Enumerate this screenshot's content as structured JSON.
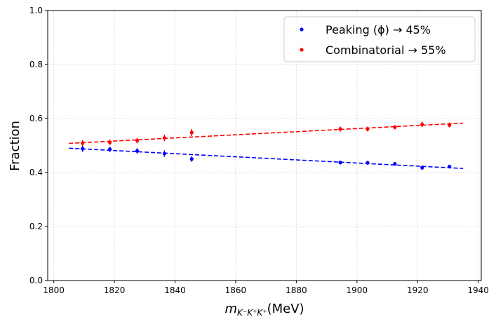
{
  "chart_data": {
    "type": "scatter",
    "title": "",
    "xlabel": "m_{K⁻K⁺K⁺} (MeV)",
    "xlabel_parts": {
      "main": "m",
      "sub": "K⁻K⁺K⁺",
      "unit": "(MeV)"
    },
    "ylabel": "Fraction",
    "xlim": [
      1798,
      1941
    ],
    "ylim": [
      0.0,
      1.0
    ],
    "xticks": [
      1800,
      1820,
      1840,
      1860,
      1880,
      1900,
      1920,
      1940
    ],
    "yticks": [
      0.0,
      0.2,
      0.4,
      0.6,
      0.8,
      1.0
    ],
    "grid": true,
    "legend_position": "top-right",
    "series": [
      {
        "name": "Peaking",
        "legend_label": "Peaking (ϕ) → 45%",
        "color": "#0000ff",
        "x": [
          1809.5,
          1818.5,
          1827.5,
          1836.5,
          1845.5,
          1894.5,
          1903.5,
          1912.5,
          1921.5,
          1930.5
        ],
        "y": [
          0.488,
          0.486,
          0.48,
          0.47,
          0.45,
          0.437,
          0.436,
          0.432,
          0.418,
          0.422
        ],
        "yerr": [
          0.011,
          0.01,
          0.01,
          0.012,
          0.01,
          0.007,
          0.007,
          0.007,
          0.008,
          0.007
        ],
        "fit": {
          "x": [
            1805,
            1935
          ],
          "y": [
            0.49,
            0.415
          ]
        }
      },
      {
        "name": "Combinatorial",
        "legend_label": "Combinatorial  → 55%",
        "color": "#ff0000",
        "x": [
          1809.5,
          1818.5,
          1827.5,
          1836.5,
          1845.5,
          1894.5,
          1903.5,
          1912.5,
          1921.5,
          1930.5
        ],
        "y": [
          0.509,
          0.512,
          0.518,
          0.528,
          0.548,
          0.561,
          0.561,
          0.568,
          0.578,
          0.576
        ],
        "yerr": [
          0.011,
          0.01,
          0.01,
          0.012,
          0.013,
          0.009,
          0.009,
          0.008,
          0.01,
          0.009
        ],
        "fit": {
          "x": [
            1805,
            1935
          ],
          "y": [
            0.508,
            0.583
          ]
        }
      }
    ]
  }
}
